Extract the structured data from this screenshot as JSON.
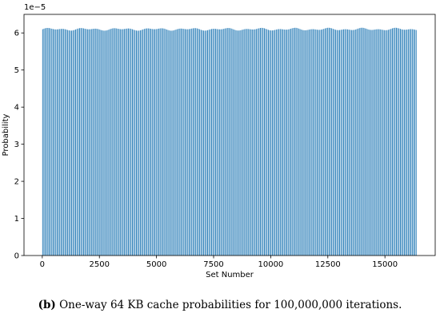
{
  "chart_data": {
    "type": "bar",
    "xlabel": "Set Number",
    "ylabel": "Probability",
    "scale_label": "1e−5",
    "x_range": [
      0,
      16383
    ],
    "xlim": [
      -800,
      17200
    ],
    "ylim": [
      0,
      6.5
    ],
    "x_ticks": [
      0,
      2500,
      5000,
      7500,
      10000,
      12500,
      15000
    ],
    "x_tick_labels": [
      "0",
      "2500",
      "5000",
      "7500",
      "10000",
      "12500",
      "15000"
    ],
    "y_ticks": [
      0,
      1,
      2,
      3,
      4,
      5,
      6
    ],
    "y_tick_labels": [
      "0",
      "1",
      "2",
      "3",
      "4",
      "5",
      "6"
    ],
    "nominal_value": 6.1,
    "value_variation": [
      6.06,
      6.14
    ],
    "bar_color": "#1f77b4",
    "grid": false,
    "legend": "none"
  },
  "caption": {
    "panel_label": "(b)",
    "text": " One-way 64 KB cache probabilities for 100,000,000 iterations."
  }
}
